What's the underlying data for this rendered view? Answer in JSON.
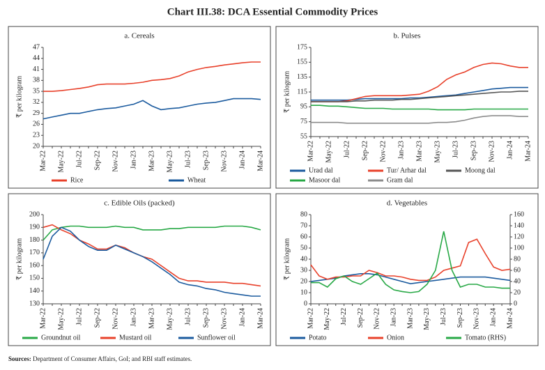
{
  "title": "Chart III.38: DCA Essential Commodity Prices",
  "source_label": "Sources:",
  "source_text": "Department of Consumer Affairs, GoI; and RBI staff estimates.",
  "chart_data": [
    {
      "type": "line",
      "title": "a. Cereals",
      "y_label": "₹ per kilogram",
      "categories": [
        "Mar-22",
        null,
        "May-22",
        null,
        "Jul-22",
        null,
        "Sep-22",
        null,
        "Nov-22",
        null,
        "Jan-23",
        null,
        "Mar-23",
        null,
        "May-23",
        null,
        "Jul-23",
        null,
        "Sep-23",
        null,
        "Nov-23",
        null,
        "Jan-24",
        null,
        "Mar-24"
      ],
      "ylim": [
        20,
        47
      ],
      "yticks": [
        20,
        23,
        26,
        29,
        32,
        35,
        38,
        41,
        44,
        47
      ],
      "legend": "bottom",
      "series": [
        {
          "name": "Rice",
          "color": "#e8402a",
          "values": [
            35,
            35,
            35.2,
            35.5,
            35.8,
            36.2,
            36.8,
            37,
            37,
            37,
            37.2,
            37.5,
            38,
            38.2,
            38.5,
            39.2,
            40.3,
            41,
            41.5,
            41.8,
            42.2,
            42.5,
            42.8,
            43,
            43
          ]
        },
        {
          "name": "Wheat",
          "color": "#1a5a9e",
          "values": [
            27.5,
            28,
            28.5,
            29,
            29,
            29.5,
            30,
            30.3,
            30.5,
            31,
            31.5,
            32.5,
            31,
            30,
            30.3,
            30.5,
            31,
            31.5,
            31.8,
            32,
            32.5,
            33,
            33,
            33,
            32.8
          ]
        }
      ]
    },
    {
      "type": "line",
      "title": "b. Pulses",
      "y_label": "₹ per kilogram",
      "categories": [
        "Mar-22",
        null,
        "May-22",
        null,
        "Jul-22",
        null,
        "Sep-22",
        null,
        "Nov-22",
        null,
        "Jan-23",
        null,
        "Mar-23",
        null,
        "May-23",
        null,
        "Jul-23",
        null,
        "Sep-23",
        null,
        "Nov-23",
        null,
        "Jan-24",
        null,
        "Mar-24"
      ],
      "ylim": [
        55,
        175
      ],
      "yticks": [
        55,
        75,
        95,
        115,
        135,
        155,
        175
      ],
      "legend": "bottom",
      "series": [
        {
          "name": "Urad dal",
          "color": "#1a5a9e",
          "values": [
            104,
            104,
            104,
            104,
            104,
            105,
            106,
            106,
            106,
            106,
            106,
            107,
            107,
            108,
            109,
            110,
            111,
            113,
            115,
            117,
            119,
            120,
            121,
            121,
            121
          ]
        },
        {
          "name": "Tur/ Arhar dal",
          "color": "#e8402a",
          "values": [
            102,
            102,
            102,
            102,
            103,
            106,
            109,
            110,
            110,
            110,
            110,
            111,
            112,
            116,
            122,
            132,
            138,
            142,
            148,
            152,
            154,
            153,
            150,
            148,
            148
          ]
        },
        {
          "name": "Moong dal",
          "color": "#555555",
          "values": [
            102,
            102,
            102,
            102,
            102,
            103,
            103,
            104,
            104,
            104,
            105,
            105,
            106,
            107,
            108,
            109,
            110,
            111,
            112,
            113,
            114,
            115,
            115,
            116,
            116
          ]
        },
        {
          "name": "Masoor dal",
          "color": "#27a845",
          "values": [
            97,
            97,
            96,
            96,
            95,
            94,
            93,
            93,
            93,
            92,
            92,
            92,
            92,
            92,
            91,
            91,
            91,
            91,
            92,
            92,
            92,
            92,
            92,
            92,
            92
          ]
        },
        {
          "name": "Gram dal",
          "color": "#8c8c8c",
          "values": [
            74,
            74,
            74,
            74,
            73,
            73,
            73,
            73,
            73,
            73,
            73,
            73,
            73,
            73,
            74,
            74,
            75,
            77,
            80,
            82,
            83,
            83,
            83,
            82,
            82
          ]
        }
      ]
    },
    {
      "type": "line",
      "title": "c. Edible Oils (packed)",
      "y_label": "₹ per kilogram",
      "categories": [
        "Mar-22",
        null,
        "May-22",
        null,
        "Jul-22",
        null,
        "Sep-22",
        null,
        "Nov-22",
        null,
        "Jan-23",
        null,
        "Mar-23",
        null,
        "May-23",
        null,
        "Jul-23",
        null,
        "Sep-23",
        null,
        "Nov-23",
        null,
        "Jan-24",
        null,
        "Mar-24"
      ],
      "ylim": [
        130,
        200
      ],
      "yticks": [
        130,
        140,
        150,
        160,
        170,
        180,
        190,
        200
      ],
      "legend": "bottom",
      "series": [
        {
          "name": "Groundnut oil",
          "color": "#27a845",
          "values": [
            180,
            188,
            190,
            191,
            191,
            190,
            190,
            190,
            191,
            190,
            190,
            188,
            188,
            188,
            189,
            189,
            190,
            190,
            190,
            190,
            191,
            191,
            191,
            190,
            188
          ]
        },
        {
          "name": "Mustard oil",
          "color": "#e8402a",
          "values": [
            190,
            192,
            188,
            185,
            180,
            177,
            173,
            173,
            176,
            174,
            170,
            167,
            165,
            160,
            155,
            150,
            148,
            148,
            147,
            147,
            147,
            146,
            146,
            145,
            144
          ]
        },
        {
          "name": "Sunflower oil",
          "color": "#1a5a9e",
          "values": [
            165,
            183,
            190,
            187,
            180,
            175,
            172,
            172,
            176,
            173,
            170,
            167,
            163,
            158,
            153,
            147,
            145,
            144,
            142,
            141,
            139,
            138,
            137,
            136,
            136
          ]
        }
      ]
    },
    {
      "type": "line",
      "title": "d. Vegetables",
      "y_label": "₹ per kilogram",
      "categories": [
        "Mar-22",
        null,
        "May-22",
        null,
        "Jul-22",
        null,
        "Sep-22",
        null,
        "Nov-22",
        null,
        "Jan-23",
        null,
        "Mar-23",
        null,
        "May-23",
        null,
        "Jul-23",
        null,
        "Sep-23",
        null,
        "Nov-23",
        null,
        "Jan-24",
        null,
        "Mar-24"
      ],
      "ylim": [
        0,
        80
      ],
      "yticks": [
        0,
        10,
        20,
        30,
        40,
        50,
        60,
        70,
        80
      ],
      "y2lim": [
        0,
        160
      ],
      "y2ticks": [
        0,
        20,
        40,
        60,
        80,
        100,
        120,
        140,
        160
      ],
      "legend": "bottom",
      "series": [
        {
          "name": "Potato",
          "color": "#1a5a9e",
          "values": [
            20,
            21,
            22,
            23,
            25,
            26,
            27,
            27,
            26,
            24,
            22,
            20,
            18,
            19,
            20,
            21,
            22,
            23,
            24,
            24,
            24,
            24,
            23,
            22,
            21
          ]
        },
        {
          "name": "Onion",
          "color": "#e8402a",
          "values": [
            35,
            25,
            22,
            24,
            24,
            25,
            25,
            30,
            28,
            25,
            25,
            24,
            22,
            21,
            21,
            24,
            30,
            32,
            34,
            55,
            58,
            45,
            33,
            30,
            31
          ]
        },
        {
          "name": "Tomato (RHS)",
          "color": "#27a845",
          "axis": "y2",
          "values": [
            38,
            38,
            30,
            45,
            50,
            40,
            35,
            45,
            55,
            35,
            25,
            22,
            20,
            22,
            35,
            60,
            130,
            60,
            30,
            35,
            35,
            30,
            30,
            28,
            28
          ]
        }
      ]
    }
  ]
}
